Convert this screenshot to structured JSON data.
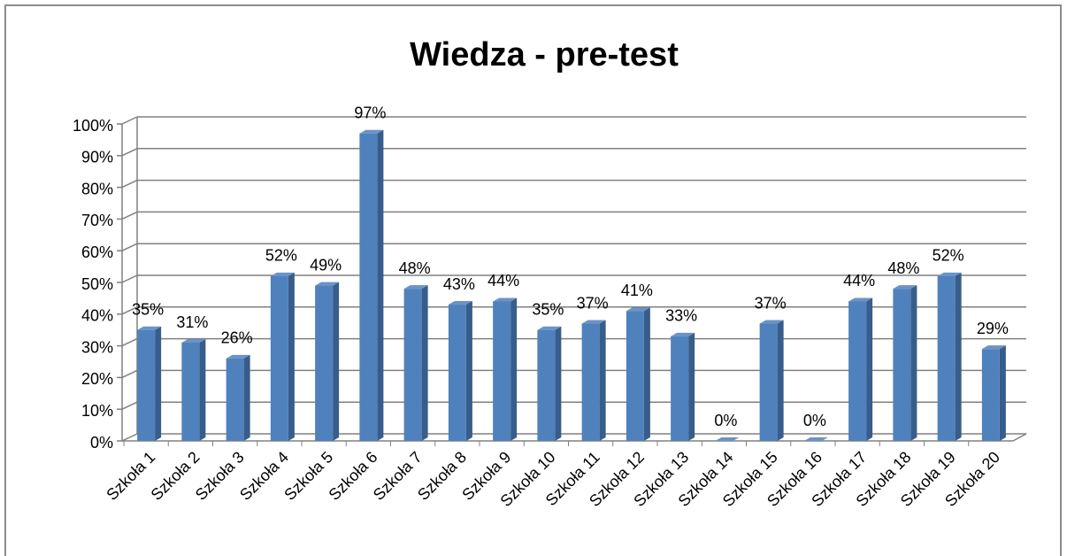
{
  "chart_data": {
    "type": "bar",
    "title": "Wiedza - pre-test",
    "categories": [
      "Szkoła 1",
      "Szkoła 2",
      "Szkoła 3",
      "Szkoła 4",
      "Szkoła 5",
      "Szkoła 6",
      "Szkoła 7",
      "Szkoła 8",
      "Szkoła 9",
      "Szkoła 10",
      "Szkoła 11",
      "Szkoła 12",
      "Szkoła 13",
      "Szkoła 14",
      "Szkoła 15",
      "Szkoła 16",
      "Szkoła 17",
      "Szkoła 18",
      "Szkoła 19",
      "Szkoła 20"
    ],
    "values": [
      35,
      31,
      26,
      52,
      49,
      97,
      48,
      43,
      44,
      35,
      37,
      41,
      33,
      0,
      37,
      0,
      44,
      48,
      52,
      29
    ],
    "value_labels": [
      "35%",
      "31%",
      "26%",
      "52%",
      "49%",
      "97%",
      "48%",
      "43%",
      "44%",
      "35%",
      "37%",
      "41%",
      "33%",
      "0%",
      "37%",
      "0%",
      "44%",
      "48%",
      "52%",
      "29%"
    ],
    "color": "#4f81bd",
    "ylim": [
      0,
      100
    ],
    "yticks": [
      {
        "value": 0,
        "label": "0%"
      },
      {
        "value": 10,
        "label": "10%"
      },
      {
        "value": 20,
        "label": "20%"
      },
      {
        "value": 30,
        "label": "30%"
      },
      {
        "value": 40,
        "label": "40%"
      },
      {
        "value": 50,
        "label": "50%"
      },
      {
        "value": 60,
        "label": "60%"
      },
      {
        "value": 70,
        "label": "70%"
      },
      {
        "value": 80,
        "label": "80%"
      },
      {
        "value": 90,
        "label": "90%"
      },
      {
        "value": 100,
        "label": "100%"
      }
    ],
    "grid": true
  }
}
